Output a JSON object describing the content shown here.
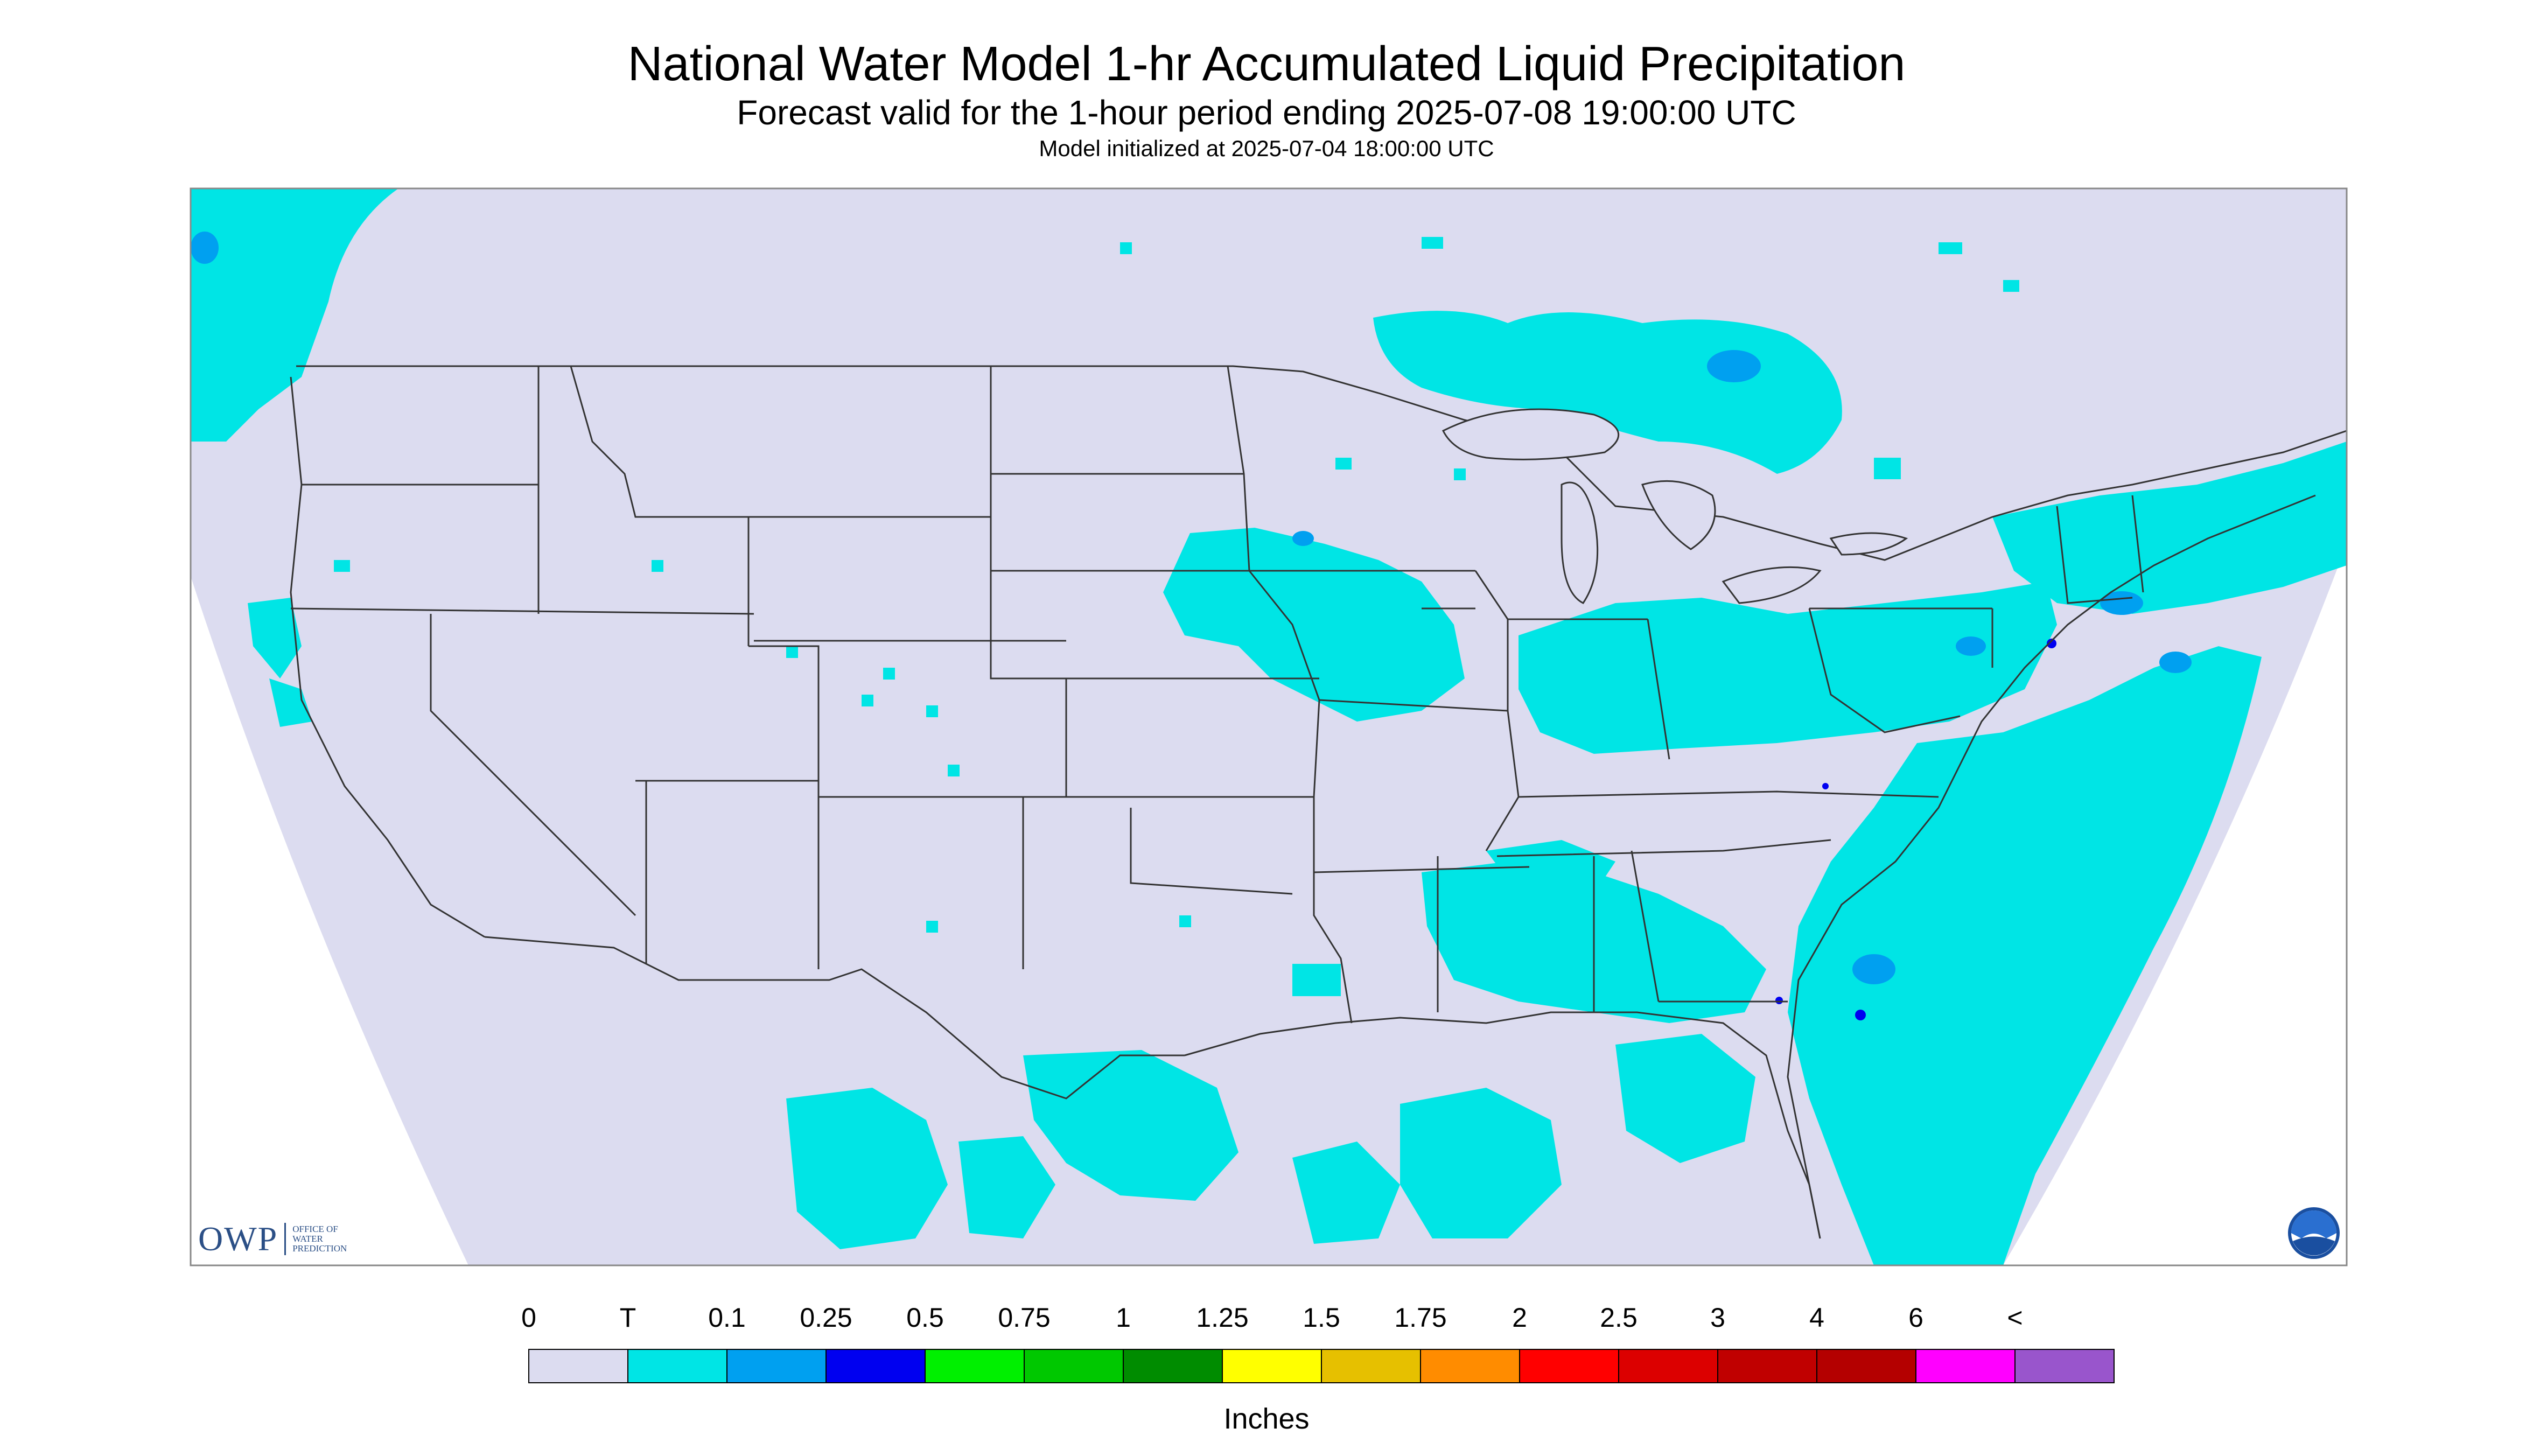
{
  "title": "National Water Model 1-hr Accumulated Liquid Precipitation",
  "subtitle": "Forecast valid for the 1-hour period ending 2025-07-08 19:00:00 UTC",
  "init_line": "Model initialized at 2025-07-04 18:00:00 UTC",
  "logo": {
    "owp_text": "OWP",
    "owp_sub1": "OFFICE OF",
    "owp_sub2": "WATER",
    "owp_sub3": "PREDICTION",
    "noaa_text": "NOAA"
  },
  "colors": {
    "background": "#dcdcf0",
    "outside": "#ffffff",
    "boundary": "#333333"
  },
  "legend": {
    "units": "Inches",
    "labels": [
      "0",
      "T",
      "0.1",
      "0.25",
      "0.5",
      "0.75",
      "1",
      "1.25",
      "1.5",
      "1.75",
      "2",
      "2.5",
      "3",
      "4",
      "6",
      "<"
    ],
    "colors": [
      "#dcdcf0",
      "#00e5e5",
      "#00a0f0",
      "#0000f0",
      "#00f000",
      "#00c800",
      "#008c00",
      "#ffff00",
      "#e6c000",
      "#ff8c00",
      "#ff0000",
      "#dc0000",
      "#c00000",
      "#b40000",
      "#ff00ff",
      "#9955cc"
    ]
  }
}
